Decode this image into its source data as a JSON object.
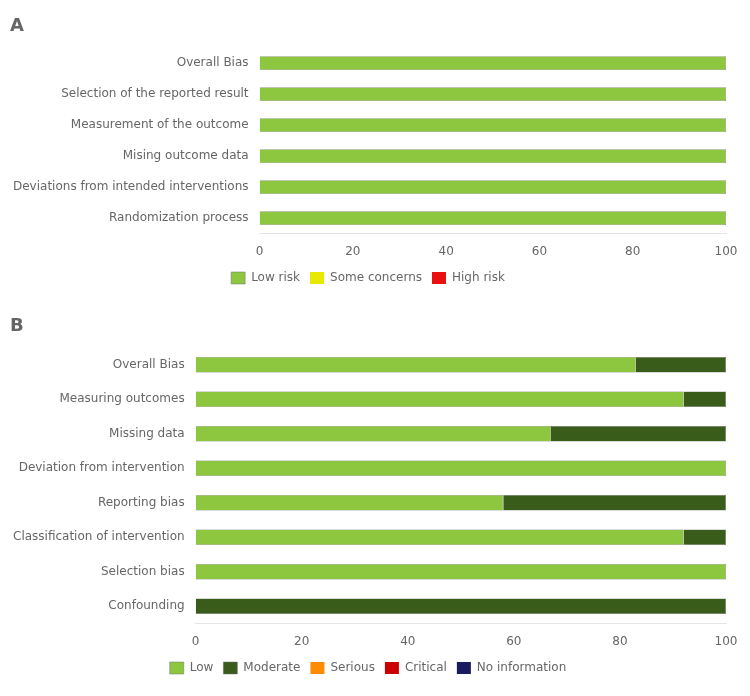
{
  "chart_data": [
    {
      "type": "bar",
      "title": "A",
      "orientation": "horizontal",
      "stacked": true,
      "grid": false,
      "legend": "bottom",
      "categories": [
        "Overall Bias",
        "Selection of the reported result",
        "Measurement of the outcome",
        "Mising outcome data",
        "Deviations from intended interventions",
        "Randomization process"
      ],
      "series": [
        {
          "name": "Low risk",
          "color": "#8dc63f",
          "values": [
            100,
            100,
            100,
            100,
            100,
            100
          ]
        },
        {
          "name": "Some concerns",
          "color": "#e8e800",
          "values": [
            0,
            0,
            0,
            0,
            0,
            0
          ]
        },
        {
          "name": "High risk",
          "color": "#e81010",
          "values": [
            0,
            0,
            0,
            0,
            0,
            0
          ]
        }
      ],
      "xlim": [
        0,
        100
      ],
      "xticks": [
        0,
        20,
        40,
        60,
        80,
        100
      ]
    },
    {
      "type": "bar",
      "title": "B",
      "orientation": "horizontal",
      "stacked": true,
      "grid": false,
      "legend": "bottom",
      "categories": [
        "Overall Bias",
        "Measuring outcomes",
        "Missing data",
        "Deviation from intervention",
        "Reporting bias",
        "Classification of intervention",
        "Selection bias",
        "Confounding"
      ],
      "series": [
        {
          "name": "Low",
          "color": "#8dc63f",
          "values": [
            83,
            92,
            67,
            100,
            58,
            92,
            100,
            0
          ]
        },
        {
          "name": "Moderate",
          "color": "#3a5c1a",
          "values": [
            17,
            8,
            33,
            0,
            42,
            8,
            0,
            100
          ]
        },
        {
          "name": "Serious",
          "color": "#ff8c00",
          "values": [
            0,
            0,
            0,
            0,
            0,
            0,
            0,
            0
          ]
        },
        {
          "name": "Critical",
          "color": "#cc0000",
          "values": [
            0,
            0,
            0,
            0,
            0,
            0,
            0,
            0
          ]
        },
        {
          "name": "No information",
          "color": "#1a1a5e",
          "values": [
            0,
            0,
            0,
            0,
            0,
            0,
            0,
            0
          ]
        }
      ],
      "xlim": [
        0,
        100
      ],
      "xticks": [
        0,
        20,
        40,
        60,
        80,
        100
      ]
    }
  ]
}
